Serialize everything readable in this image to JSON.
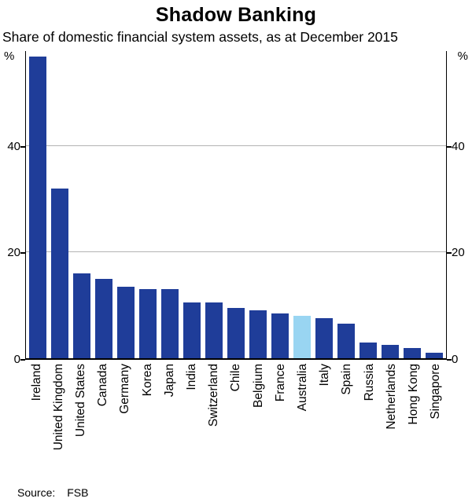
{
  "page": {
    "title": "Shadow Banking",
    "subtitle": "Share of domestic financial system assets, as at December 2015",
    "source_label": "Source:",
    "source_value": "FSB"
  },
  "chart_data": {
    "type": "bar",
    "title": "Shadow Banking",
    "subtitle": "Share of domestic financial system assets, as at December 2015",
    "unit": "%",
    "categories": [
      "Ireland",
      "United Kingdom",
      "United States",
      "Canada",
      "Germany",
      "Korea",
      "Japan",
      "India",
      "Switzerland",
      "Chile",
      "Belgium",
      "France",
      "Australia",
      "Italy",
      "Spain",
      "Russia",
      "Netherlands",
      "Hong Kong",
      "Singapore"
    ],
    "values": [
      57,
      32,
      16,
      15,
      13.5,
      13,
      13,
      10.5,
      10.5,
      9.5,
      9,
      8.5,
      8,
      7.5,
      6.5,
      3,
      2.5,
      2,
      1
    ],
    "highlight_category": "Australia",
    "ylim": [
      0,
      58
    ],
    "yticks": [
      0,
      20,
      40
    ],
    "ylabel_left": "%",
    "ylabel_right": "%",
    "grid": "horizontal gridlines at 20 and 40",
    "legend_position": "none",
    "colors": {
      "bar": "#1f3d99",
      "highlight": "#99d5f2",
      "gridline": "#b3b3b3",
      "axis": "#000000"
    },
    "source": "FSB"
  }
}
